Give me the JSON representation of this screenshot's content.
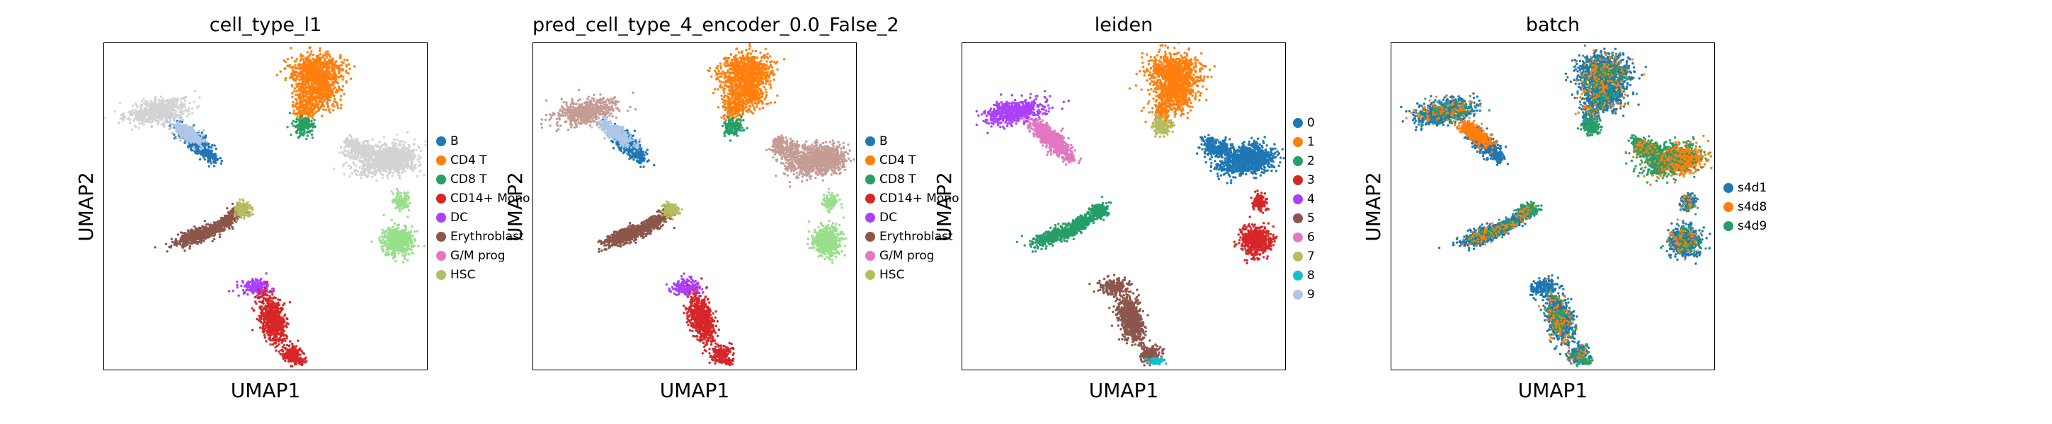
{
  "chart_data": [
    {
      "type": "scatter",
      "title": "cell_type_l1",
      "xlabel": "UMAP1",
      "ylabel": "UMAP2",
      "legend_position": "right",
      "grid": false,
      "legend": [
        {
          "name": "B",
          "color": "#1f77b4"
        },
        {
          "name": "CD4 T",
          "color": "#ff7f0e"
        },
        {
          "name": "CD8 T",
          "color": "#279e68"
        },
        {
          "name": "CD14+ Mono",
          "color": "#d62728"
        },
        {
          "name": "DC",
          "color": "#aa40fc"
        },
        {
          "name": "Erythroblast",
          "color": "#8c564b"
        },
        {
          "name": "G/M prog",
          "color": "#e377c2"
        },
        {
          "name": "HSC",
          "color": "#b5bd61"
        }
      ]
    },
    {
      "type": "scatter",
      "title": "pred_cell_type_4_encoder_0.0_False_2",
      "xlabel": "UMAP1",
      "ylabel": "UMAP2",
      "legend_position": "right",
      "grid": false,
      "legend": [
        {
          "name": "B",
          "color": "#1f77b4"
        },
        {
          "name": "CD4 T",
          "color": "#ff7f0e"
        },
        {
          "name": "CD8 T",
          "color": "#279e68"
        },
        {
          "name": "CD14+ Mono",
          "color": "#d62728"
        },
        {
          "name": "DC",
          "color": "#aa40fc"
        },
        {
          "name": "Erythroblast",
          "color": "#8c564b"
        },
        {
          "name": "G/M prog",
          "color": "#e377c2"
        },
        {
          "name": "HSC",
          "color": "#b5bd61"
        }
      ]
    },
    {
      "type": "scatter",
      "title": "leiden",
      "xlabel": "UMAP1",
      "ylabel": "UMAP2",
      "legend_position": "right",
      "grid": false,
      "legend": [
        {
          "name": "0",
          "color": "#1f77b4"
        },
        {
          "name": "1",
          "color": "#ff7f0e"
        },
        {
          "name": "2",
          "color": "#279e68"
        },
        {
          "name": "3",
          "color": "#d62728"
        },
        {
          "name": "4",
          "color": "#aa40fc"
        },
        {
          "name": "5",
          "color": "#8c564b"
        },
        {
          "name": "6",
          "color": "#e377c2"
        },
        {
          "name": "7",
          "color": "#b5bd61"
        },
        {
          "name": "8",
          "color": "#17becf"
        },
        {
          "name": "9",
          "color": "#aec7e8"
        }
      ]
    },
    {
      "type": "scatter",
      "title": "batch",
      "xlabel": "UMAP1",
      "ylabel": "UMAP2",
      "legend_position": "right",
      "grid": false,
      "legend": [
        {
          "name": "s4d1",
          "color": "#1f77b4"
        },
        {
          "name": "s4d8",
          "color": "#ff7f0e"
        },
        {
          "name": "s4d9",
          "color": "#279e68"
        }
      ]
    }
  ]
}
